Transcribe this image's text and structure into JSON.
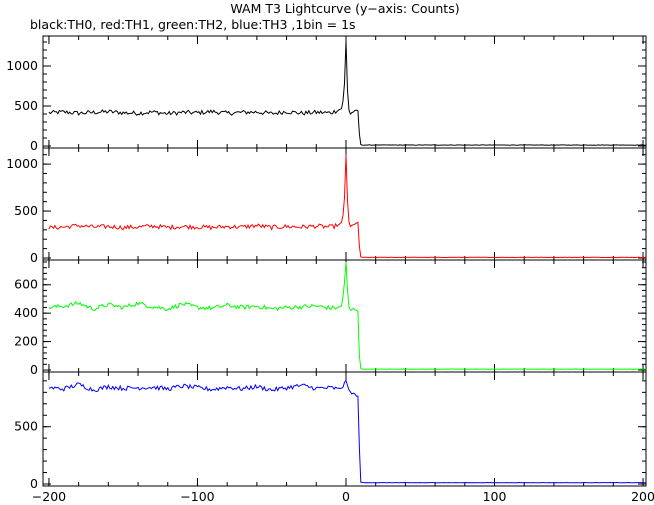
{
  "chart_data": {
    "type": "line",
    "title": "WAM T3 Lightcurve (y−axis: Counts)",
    "subtitle": "black:TH0, red:TH1, green:TH2, blue:TH3 ,1bin = 1s",
    "xlim": [
      -204,
      202
    ],
    "xticks": [
      -200,
      -100,
      0,
      100,
      200
    ],
    "xtick_labels": [
      "−200",
      "−100",
      "0",
      "100",
      "200"
    ],
    "grid": false,
    "panels": [
      {
        "name": "TH0",
        "color": "#000000",
        "ylim": [
          0,
          1350
        ],
        "yticks": [
          0,
          500,
          1000
        ],
        "ytick_labels": [
          "0",
          "500",
          "1000"
        ],
        "series": [
          {
            "x": [
              -200,
              -190,
              -180,
              -170,
              -160,
              -150,
              -140,
              -130,
              -120,
              -110,
              -100,
              -90,
              -80,
              -70,
              -60,
              -50,
              -40,
              -30,
              -20,
              -10,
              -5,
              -3,
              -2,
              -1,
              0,
              1,
              2,
              3,
              5,
              8,
              9,
              10,
              11,
              200
            ],
            "y": [
              415,
              425,
              410,
              420,
              430,
              415,
              410,
              425,
              405,
              420,
              415,
              430,
              410,
              420,
              425,
              405,
              430,
              410,
              420,
              415,
              450,
              470,
              560,
              780,
              1310,
              700,
              450,
              400,
              430,
              440,
              150,
              15,
              10,
              10
            ]
          }
        ]
      },
      {
        "name": "TH1",
        "color": "#ff0000",
        "ylim": [
          0,
          1150
        ],
        "yticks": [
          0,
          500,
          1000
        ],
        "ytick_labels": [
          "0",
          "500",
          "1000"
        ],
        "series": [
          {
            "x": [
              -200,
              -190,
              -180,
              -170,
              -160,
              -150,
              -140,
              -130,
              -120,
              -110,
              -100,
              -90,
              -80,
              -70,
              -60,
              -50,
              -40,
              -30,
              -20,
              -10,
              -5,
              -3,
              -2,
              -1,
              0,
              1,
              2,
              3,
              5,
              8,
              9,
              10,
              11,
              200
            ],
            "y": [
              320,
              330,
              345,
              330,
              335,
              325,
              330,
              340,
              325,
              335,
              330,
              325,
              335,
              330,
              345,
              325,
              335,
              330,
              340,
              330,
              350,
              370,
              450,
              650,
              1100,
              600,
              380,
              330,
              360,
              370,
              120,
              10,
              5,
              5
            ]
          }
        ]
      },
      {
        "name": "TH2",
        "color": "#00ff00",
        "ylim": [
          0,
          760
        ],
        "yticks": [
          0,
          200,
          400,
          600
        ],
        "ytick_labels": [
          "0",
          "200",
          "400",
          "600"
        ],
        "series": [
          {
            "x": [
              -200,
              -190,
              -180,
              -170,
              -160,
              -150,
              -140,
              -130,
              -120,
              -110,
              -100,
              -90,
              -80,
              -70,
              -60,
              -50,
              -40,
              -30,
              -20,
              -10,
              -5,
              -3,
              -2,
              -1,
              0,
              1,
              2,
              3,
              5,
              8,
              9,
              10,
              11,
              200
            ],
            "y": [
              440,
              450,
              470,
              430,
              460,
              440,
              470,
              445,
              430,
              465,
              440,
              435,
              455,
              440,
              450,
              430,
              440,
              445,
              450,
              435,
              440,
              450,
              520,
              620,
              760,
              560,
              440,
              420,
              430,
              420,
              100,
              10,
              5,
              5
            ]
          }
        ]
      },
      {
        "name": "TH3",
        "color": "#0000ff",
        "ylim": [
          0,
          960
        ],
        "yticks": [
          0,
          500
        ],
        "ytick_labels": [
          "0",
          "500"
        ],
        "series": [
          {
            "x": [
              -200,
              -190,
              -180,
              -170,
              -160,
              -150,
              -140,
              -130,
              -120,
              -110,
              -100,
              -90,
              -80,
              -70,
              -60,
              -50,
              -40,
              -30,
              -20,
              -10,
              -5,
              -3,
              -2,
              -1,
              0,
              1,
              2,
              3,
              5,
              8,
              9,
              10,
              11,
              200
            ],
            "y": [
              840,
              830,
              870,
              820,
              850,
              835,
              840,
              845,
              830,
              855,
              840,
              825,
              845,
              830,
              850,
              820,
              840,
              860,
              835,
              840,
              830,
              840,
              850,
              880,
              910,
              850,
              820,
              800,
              790,
              760,
              320,
              15,
              10,
              10
            ]
          }
        ]
      }
    ]
  }
}
